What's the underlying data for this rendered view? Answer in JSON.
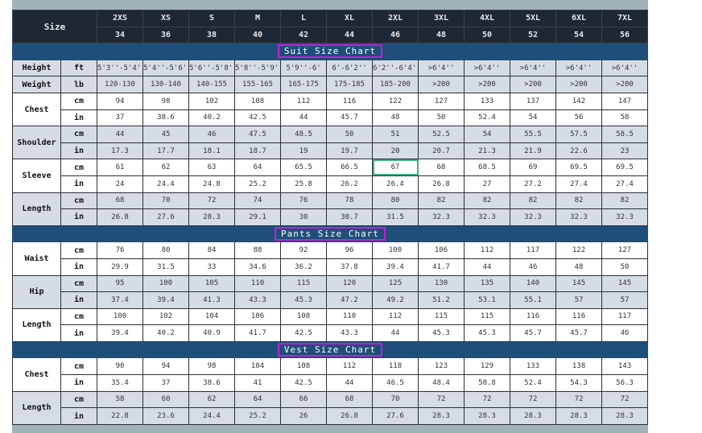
{
  "header": {
    "size_label": "Size",
    "sizes": [
      "2XS",
      "XS",
      "S",
      "M",
      "L",
      "XL",
      "2XL",
      "3XL",
      "4XL",
      "5XL",
      "6XL",
      "7XL"
    ],
    "numbers": [
      "34",
      "36",
      "38",
      "40",
      "42",
      "44",
      "46",
      "48",
      "50",
      "52",
      "54",
      "56"
    ]
  },
  "selected_cell": "Suit Sleeve cm 2XL",
  "colors": {
    "header_bg": "#1e2734",
    "section_bg": "#1f4e79",
    "section_outline": "#c21fd8",
    "alt_row": "#d6dce4",
    "selection": "#3fae82"
  },
  "sections": [
    {
      "title": "Suit Size Chart",
      "groups": [
        {
          "label": "Height",
          "shade": "g",
          "rows": [
            {
              "unit": "ft",
              "values": [
                "5'3''-5'4''",
                "5'4''-5'6''",
                "5'6''-5'8''",
                "5'8''-5'9''",
                "5'9''-6'",
                "6'-6'2''",
                "6'2''-6'4''",
                ">6'4''",
                ">6'4''",
                ">6'4''",
                ">6'4''",
                ">6'4''"
              ]
            }
          ]
        },
        {
          "label": "Weight",
          "shade": "g",
          "rows": [
            {
              "unit": "lb",
              "values": [
                "120-130",
                "130-140",
                "140-155",
                "155-165",
                "165-175",
                "175-185",
                "185-200",
                ">200",
                ">200",
                ">200",
                ">200",
                ">200"
              ]
            }
          ]
        },
        {
          "label": "Chest",
          "shade": "w",
          "rows": [
            {
              "unit": "cm",
              "values": [
                "94",
                "98",
                "102",
                "108",
                "112",
                "116",
                "122",
                "127",
                "133",
                "137",
                "142",
                "147"
              ]
            },
            {
              "unit": "in",
              "values": [
                "37",
                "38.6",
                "40.2",
                "42.5",
                "44",
                "45.7",
                "48",
                "50",
                "52.4",
                "54",
                "56",
                "58"
              ]
            }
          ]
        },
        {
          "label": "Shoulder",
          "shade": "g",
          "rows": [
            {
              "unit": "cm",
              "values": [
                "44",
                "45",
                "46",
                "47.5",
                "48.5",
                "50",
                "51",
                "52.5",
                "54",
                "55.5",
                "57.5",
                "58.5"
              ]
            },
            {
              "unit": "in",
              "values": [
                "17.3",
                "17.7",
                "18.1",
                "18.7",
                "19",
                "19.7",
                "20",
                "20.7",
                "21.3",
                "21.9",
                "22.6",
                "23"
              ]
            }
          ]
        },
        {
          "label": "Sleeve",
          "shade": "w",
          "rows": [
            {
              "unit": "cm",
              "values": [
                "61",
                "62",
                "63",
                "64",
                "65.5",
                "66.5",
                "67",
                "68",
                "68.5",
                "69",
                "69.5",
                "69.5"
              ]
            },
            {
              "unit": "in",
              "values": [
                "24",
                "24.4",
                "24.8",
                "25.2",
                "25.8",
                "26.2",
                "26.4",
                "26.8",
                "27",
                "27.2",
                "27.4",
                "27.4"
              ]
            }
          ]
        },
        {
          "label": "Length",
          "shade": "g",
          "rows": [
            {
              "unit": "cm",
              "values": [
                "68",
                "70",
                "72",
                "74",
                "76",
                "78",
                "80",
                "82",
                "82",
                "82",
                "82",
                "82"
              ]
            },
            {
              "unit": "in",
              "values": [
                "26.8",
                "27.6",
                "28.3",
                "29.1",
                "30",
                "30.7",
                "31.5",
                "32.3",
                "32.3",
                "32.3",
                "32.3",
                "32.3"
              ]
            }
          ]
        }
      ]
    },
    {
      "title": "Pants Size Chart",
      "groups": [
        {
          "label": "Waist",
          "shade": "w",
          "rows": [
            {
              "unit": "cm",
              "values": [
                "76",
                "80",
                "84",
                "88",
                "92",
                "96",
                "100",
                "106",
                "112",
                "117",
                "122",
                "127"
              ]
            },
            {
              "unit": "in",
              "values": [
                "29.9",
                "31.5",
                "33",
                "34.6",
                "36.2",
                "37.8",
                "39.4",
                "41.7",
                "44",
                "46",
                "48",
                "50"
              ]
            }
          ]
        },
        {
          "label": "Hip",
          "shade": "g",
          "rows": [
            {
              "unit": "cm",
              "values": [
                "95",
                "100",
                "105",
                "110",
                "115",
                "120",
                "125",
                "130",
                "135",
                "140",
                "145",
                "145"
              ]
            },
            {
              "unit": "in",
              "values": [
                "37.4",
                "39.4",
                "41.3",
                "43.3",
                "45.3",
                "47.2",
                "49.2",
                "51.2",
                "53.1",
                "55.1",
                "57",
                "57"
              ]
            }
          ]
        },
        {
          "label": "Length",
          "shade": "w",
          "rows": [
            {
              "unit": "cm",
              "values": [
                "100",
                "102",
                "104",
                "106",
                "108",
                "110",
                "112",
                "115",
                "115",
                "116",
                "116",
                "117"
              ]
            },
            {
              "unit": "in",
              "values": [
                "39.4",
                "40.2",
                "40.9",
                "41.7",
                "42.5",
                "43.3",
                "44",
                "45.3",
                "45.3",
                "45.7",
                "45.7",
                "46"
              ]
            }
          ]
        }
      ]
    },
    {
      "title": "Vest Size Chart",
      "groups": [
        {
          "label": "Chest",
          "shade": "w",
          "rows": [
            {
              "unit": "cm",
              "values": [
                "90",
                "94",
                "98",
                "104",
                "108",
                "112",
                "118",
                "123",
                "129",
                "133",
                "138",
                "143"
              ]
            },
            {
              "unit": "in",
              "values": [
                "35.4",
                "37",
                "38.6",
                "41",
                "42.5",
                "44",
                "46.5",
                "48.4",
                "50.8",
                "52.4",
                "54.3",
                "56.3"
              ]
            }
          ]
        },
        {
          "label": "Length",
          "shade": "g",
          "rows": [
            {
              "unit": "cm",
              "values": [
                "58",
                "60",
                "62",
                "64",
                "66",
                "68",
                "70",
                "72",
                "72",
                "72",
                "72",
                "72"
              ]
            },
            {
              "unit": "in",
              "values": [
                "22.8",
                "23.6",
                "24.4",
                "25.2",
                "26",
                "26.8",
                "27.6",
                "28.3",
                "28.3",
                "28.3",
                "28.3",
                "28.3"
              ]
            }
          ]
        }
      ]
    }
  ]
}
